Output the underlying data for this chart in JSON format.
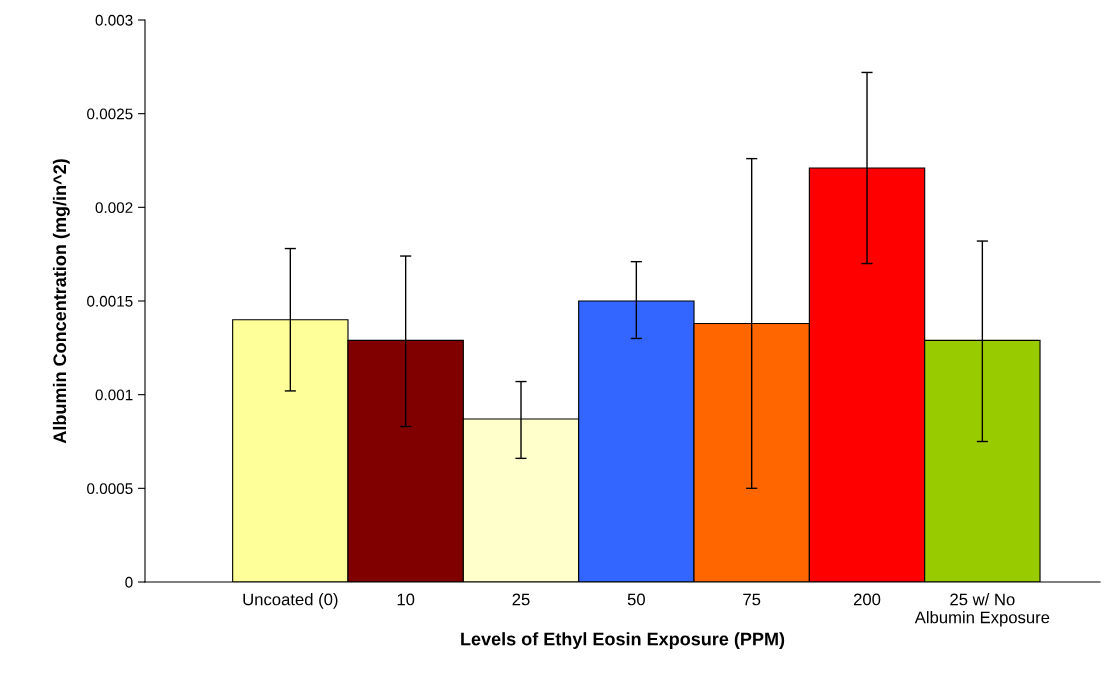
{
  "chart_data": {
    "type": "bar",
    "xlabel": "Levels of Ethyl Eosin Exposure (PPM)",
    "ylabel": "Albumin Concentration (mg/in^2)",
    "categories": [
      "Uncoated (0)",
      "10",
      "25",
      "50",
      "75",
      "200",
      "25 w/ No\nAlbumin Exposure"
    ],
    "values": [
      0.0014,
      0.00129,
      0.00087,
      0.0015,
      0.00138,
      0.00221,
      0.00129
    ],
    "errors": [
      [
        0.00102,
        0.00178
      ],
      [
        0.00083,
        0.00174
      ],
      [
        0.00066,
        0.00107
      ],
      [
        0.0013,
        0.00171
      ],
      [
        0.0005,
        0.00226
      ],
      [
        0.0017,
        0.00272
      ],
      [
        0.00075,
        0.00182
      ]
    ],
    "colors": [
      "#ffff99",
      "#800000",
      "#ffffcc",
      "#3366ff",
      "#ff6600",
      "#ff0000",
      "#99cc00"
    ],
    "ylim": [
      0,
      0.003
    ],
    "yticks": [
      0,
      0.0005,
      0.001,
      0.0015,
      0.002,
      0.0025,
      0.003
    ],
    "grid": false,
    "legend": false
  }
}
